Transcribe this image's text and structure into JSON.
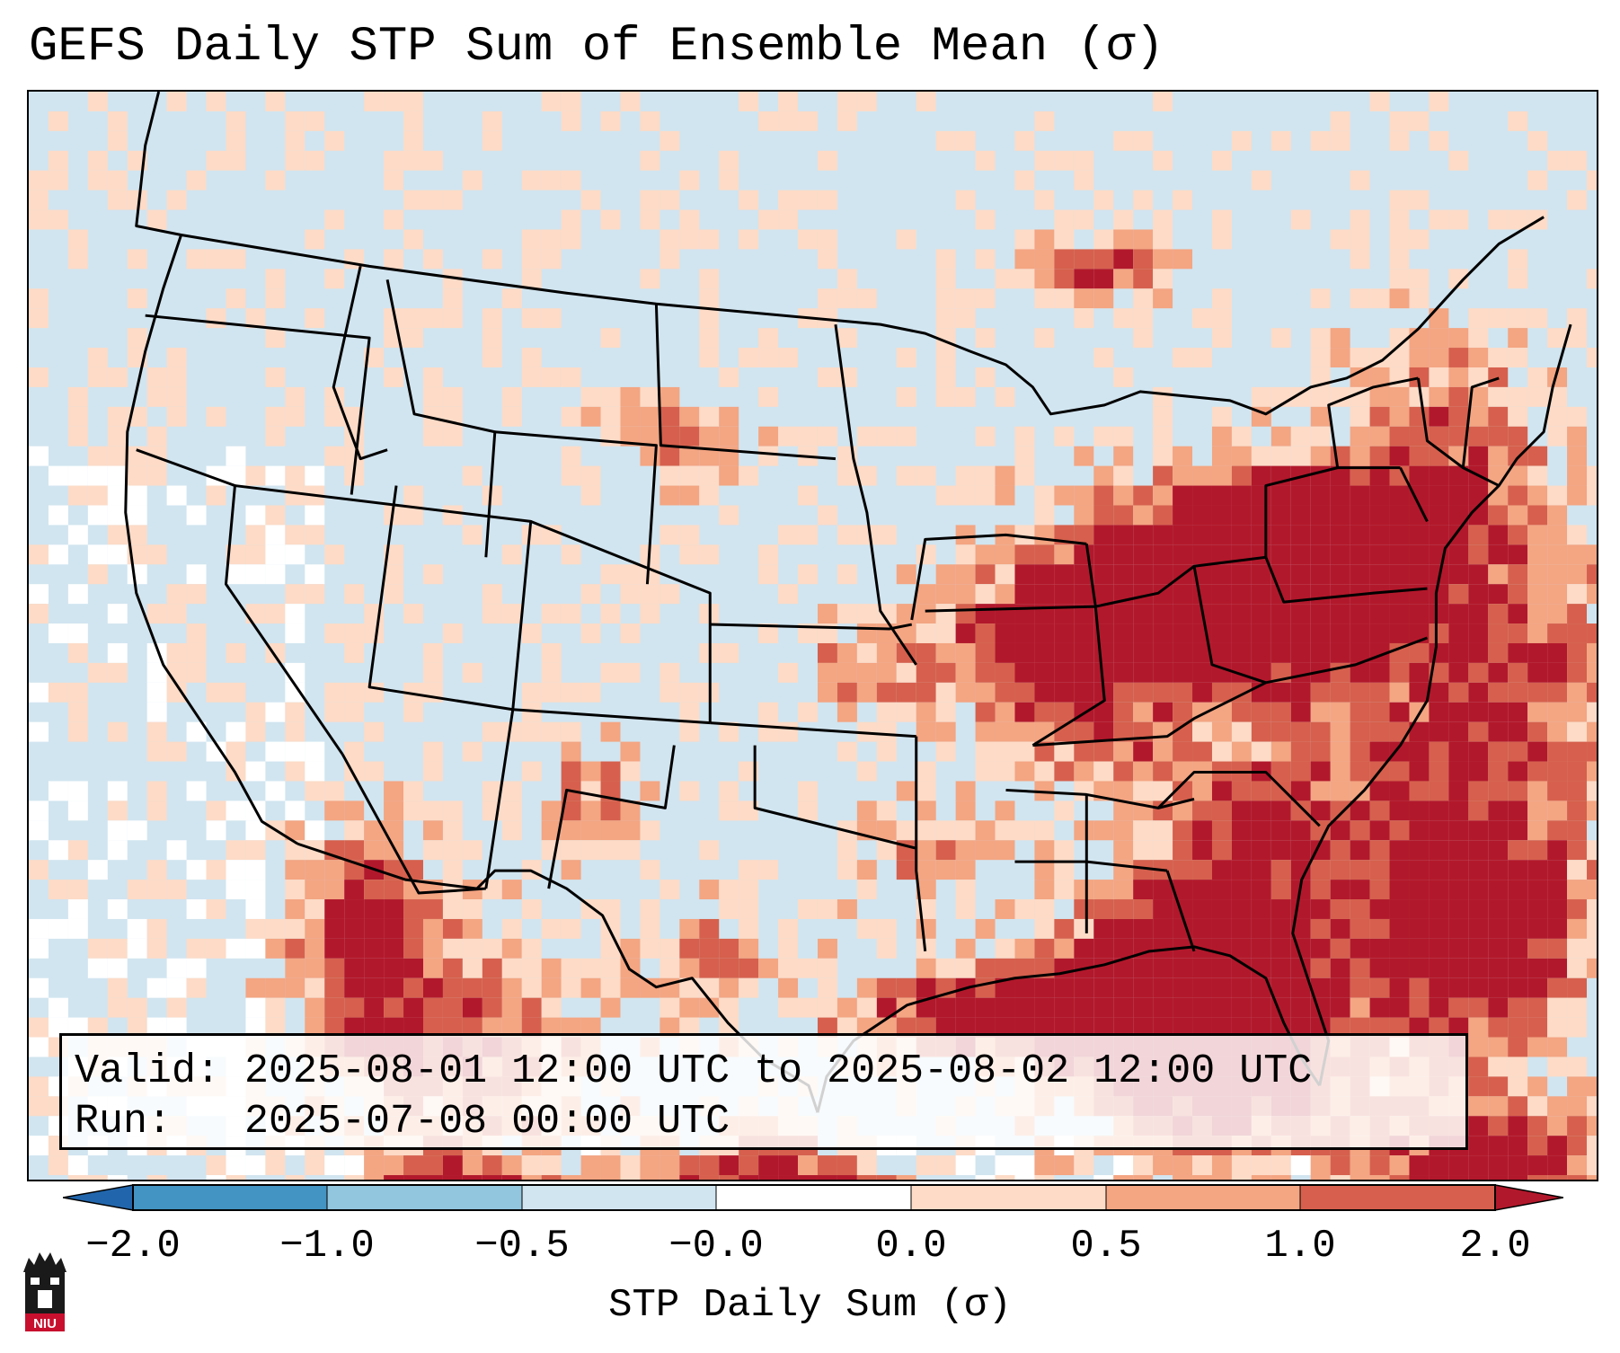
{
  "title": "GEFS Daily STP Sum of Ensemble Mean (σ)",
  "info": {
    "valid_line": "Valid: 2025-08-01 12:00 UTC to 2025-08-02 12:00 UTC",
    "run_line": "Run:   2025-07-08 00:00 UTC"
  },
  "colorbar": {
    "label": "STP Daily Sum (σ)",
    "ticks": [
      "−2.0",
      "−1.0",
      "−0.5",
      "−0.0",
      "0.0",
      "0.5",
      "1.0",
      "2.0"
    ],
    "colors": [
      "#2166ac",
      "#4393c3",
      "#92c5de",
      "#d1e5f0",
      "#ffffff",
      "#fddbc7",
      "#f4a582",
      "#d6604d",
      "#b2182b"
    ]
  },
  "logo": {
    "text": "NIU"
  }
}
